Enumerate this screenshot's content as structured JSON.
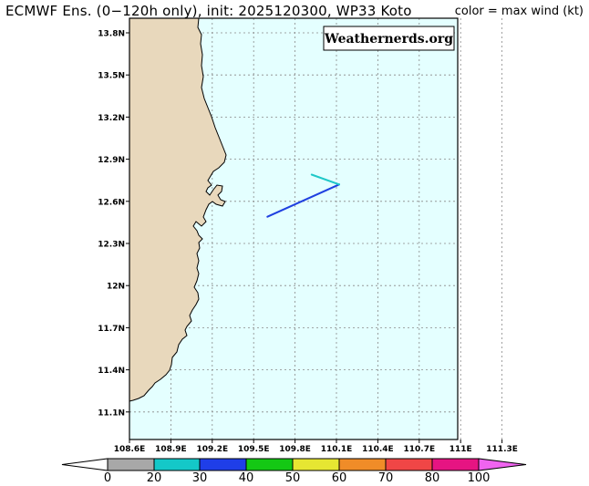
{
  "header": {
    "title": "ECMWF Ens. (0−120h only), init: 2025120300, WP33 Koto",
    "color_note": "color = max wind (kt)"
  },
  "map": {
    "watermark": "Weathernerds.org",
    "lat_labels": [
      "13.8N",
      "13.5N",
      "13.2N",
      "12.9N",
      "12.6N",
      "12.3N",
      "12N",
      "11.7N",
      "11.4N",
      "11.1N"
    ],
    "lon_labels": [
      "108.6E",
      "108.9E",
      "109.2E",
      "109.5E",
      "109.8E",
      "110.1E",
      "110.4E",
      "110.7E",
      "111E",
      "111.3E"
    ],
    "colors": {
      "ocean": "#e4ffff",
      "land": "#e8d8bc",
      "grid": "#888888"
    }
  },
  "tracks": [
    {
      "color": "#1f40e0",
      "points": [
        [
          109.6,
          12.49
        ],
        [
          110.12,
          12.72
        ]
      ]
    },
    {
      "color": "#1fc8c8",
      "points": [
        [
          110.12,
          12.72
        ],
        [
          109.92,
          12.79
        ]
      ]
    }
  ],
  "colorbar": {
    "labels": [
      "0",
      "20",
      "30",
      "40",
      "50",
      "60",
      "70",
      "80",
      "100"
    ],
    "colors": [
      "#a8a8a8",
      "#14c8c8",
      "#1f3ee8",
      "#14c814",
      "#e6e632",
      "#f08c28",
      "#f04646",
      "#e61482",
      "#f064f0"
    ]
  }
}
